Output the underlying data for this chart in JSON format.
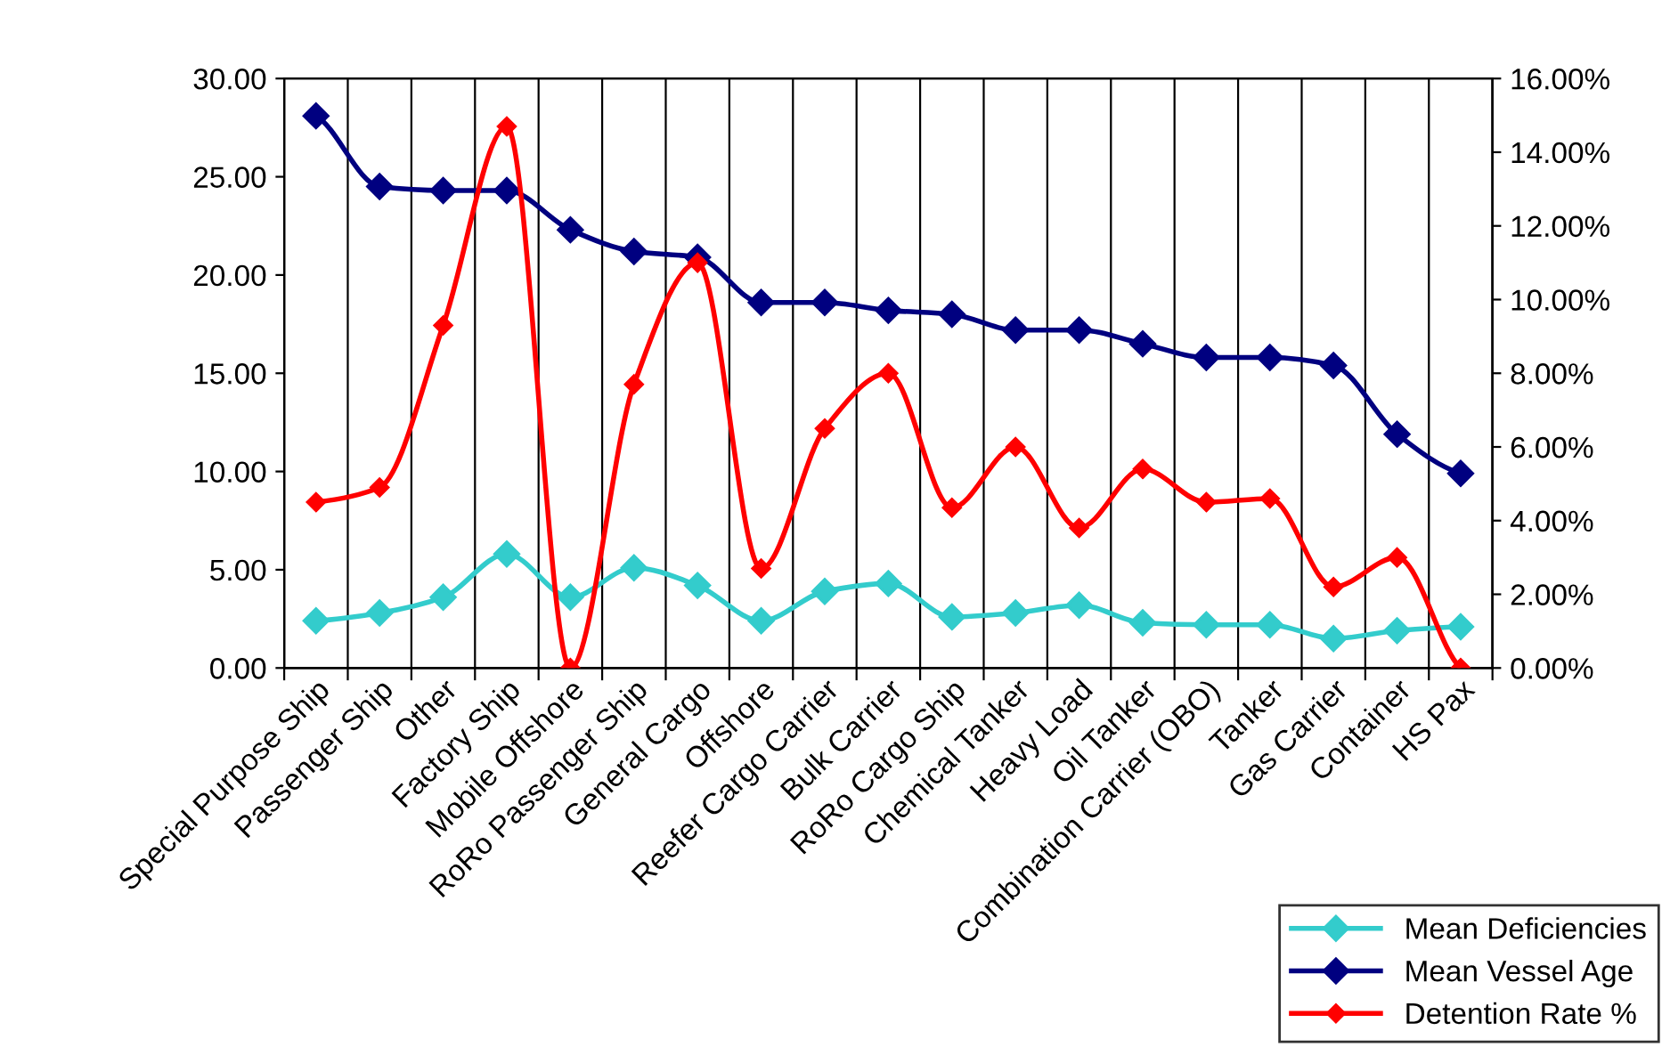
{
  "chart_data": {
    "type": "line",
    "categories": [
      "Special Purpose Ship",
      "Passenger Ship",
      "Other",
      "Factory Ship",
      "Mobile Offshore",
      "RoRo Passenger Ship",
      "General Cargo",
      "Offshore",
      "Reefer Cargo Carrier",
      "Bulk Carrier",
      "RoRo Cargo Ship",
      "Chemical Tanker",
      "Heavy Load",
      "Oil Tanker",
      "Combination Carrier (OBO)",
      "Tanker",
      "Gas Carrier",
      "Container",
      "HS Pax"
    ],
    "series": [
      {
        "name": "Mean Deficiencies",
        "color": "#33cccc",
        "values": [
          2.4,
          2.8,
          3.6,
          5.8,
          3.6,
          5.1,
          4.2,
          2.4,
          3.9,
          4.3,
          2.6,
          2.8,
          3.2,
          2.3,
          2.2,
          2.2,
          1.5,
          1.9,
          2.1
        ]
      },
      {
        "name": "Mean Vessel Age",
        "color": "#000080",
        "values": [
          28.1,
          24.5,
          24.3,
          24.3,
          22.3,
          21.2,
          20.9,
          18.6,
          18.6,
          18.2,
          18.0,
          17.2,
          17.2,
          16.5,
          15.8,
          15.8,
          15.4,
          11.9,
          9.9
        ]
      },
      {
        "name": "Detention Rate %",
        "color": "#ff0000",
        "axis": "y2",
        "values": [
          4.5,
          4.9,
          9.3,
          14.7,
          0,
          7.7,
          11.0,
          2.7,
          6.5,
          8.0,
          4.35,
          6.0,
          3.8,
          5.4,
          4.5,
          4.6,
          2.2,
          3.0,
          0
        ]
      }
    ],
    "ylim": [
      0,
      30
    ],
    "yticks": [
      {
        "value": 0,
        "label": "0.00"
      },
      {
        "value": 5,
        "label": "5.00"
      },
      {
        "value": 10,
        "label": "10.00"
      },
      {
        "value": 15,
        "label": "15.00"
      },
      {
        "value": 20,
        "label": "20.00"
      },
      {
        "value": 25,
        "label": "25.00"
      },
      {
        "value": 30,
        "label": "30.00"
      }
    ],
    "y2lim": [
      0,
      16
    ],
    "y2ticks": [
      {
        "value": 0,
        "label": "0.00%"
      },
      {
        "value": 2,
        "label": "2.00%"
      },
      {
        "value": 4,
        "label": "4.00%"
      },
      {
        "value": 6,
        "label": "6.00%"
      },
      {
        "value": 8,
        "label": "8.00%"
      },
      {
        "value": 10,
        "label": "10.00%"
      },
      {
        "value": 12,
        "label": "12.00%"
      },
      {
        "value": 14,
        "label": "14.00%"
      },
      {
        "value": 16,
        "label": "16.00%"
      }
    ],
    "grid": "x",
    "legend": "bottom right",
    "marker": "diamond",
    "line_style": "solid"
  }
}
